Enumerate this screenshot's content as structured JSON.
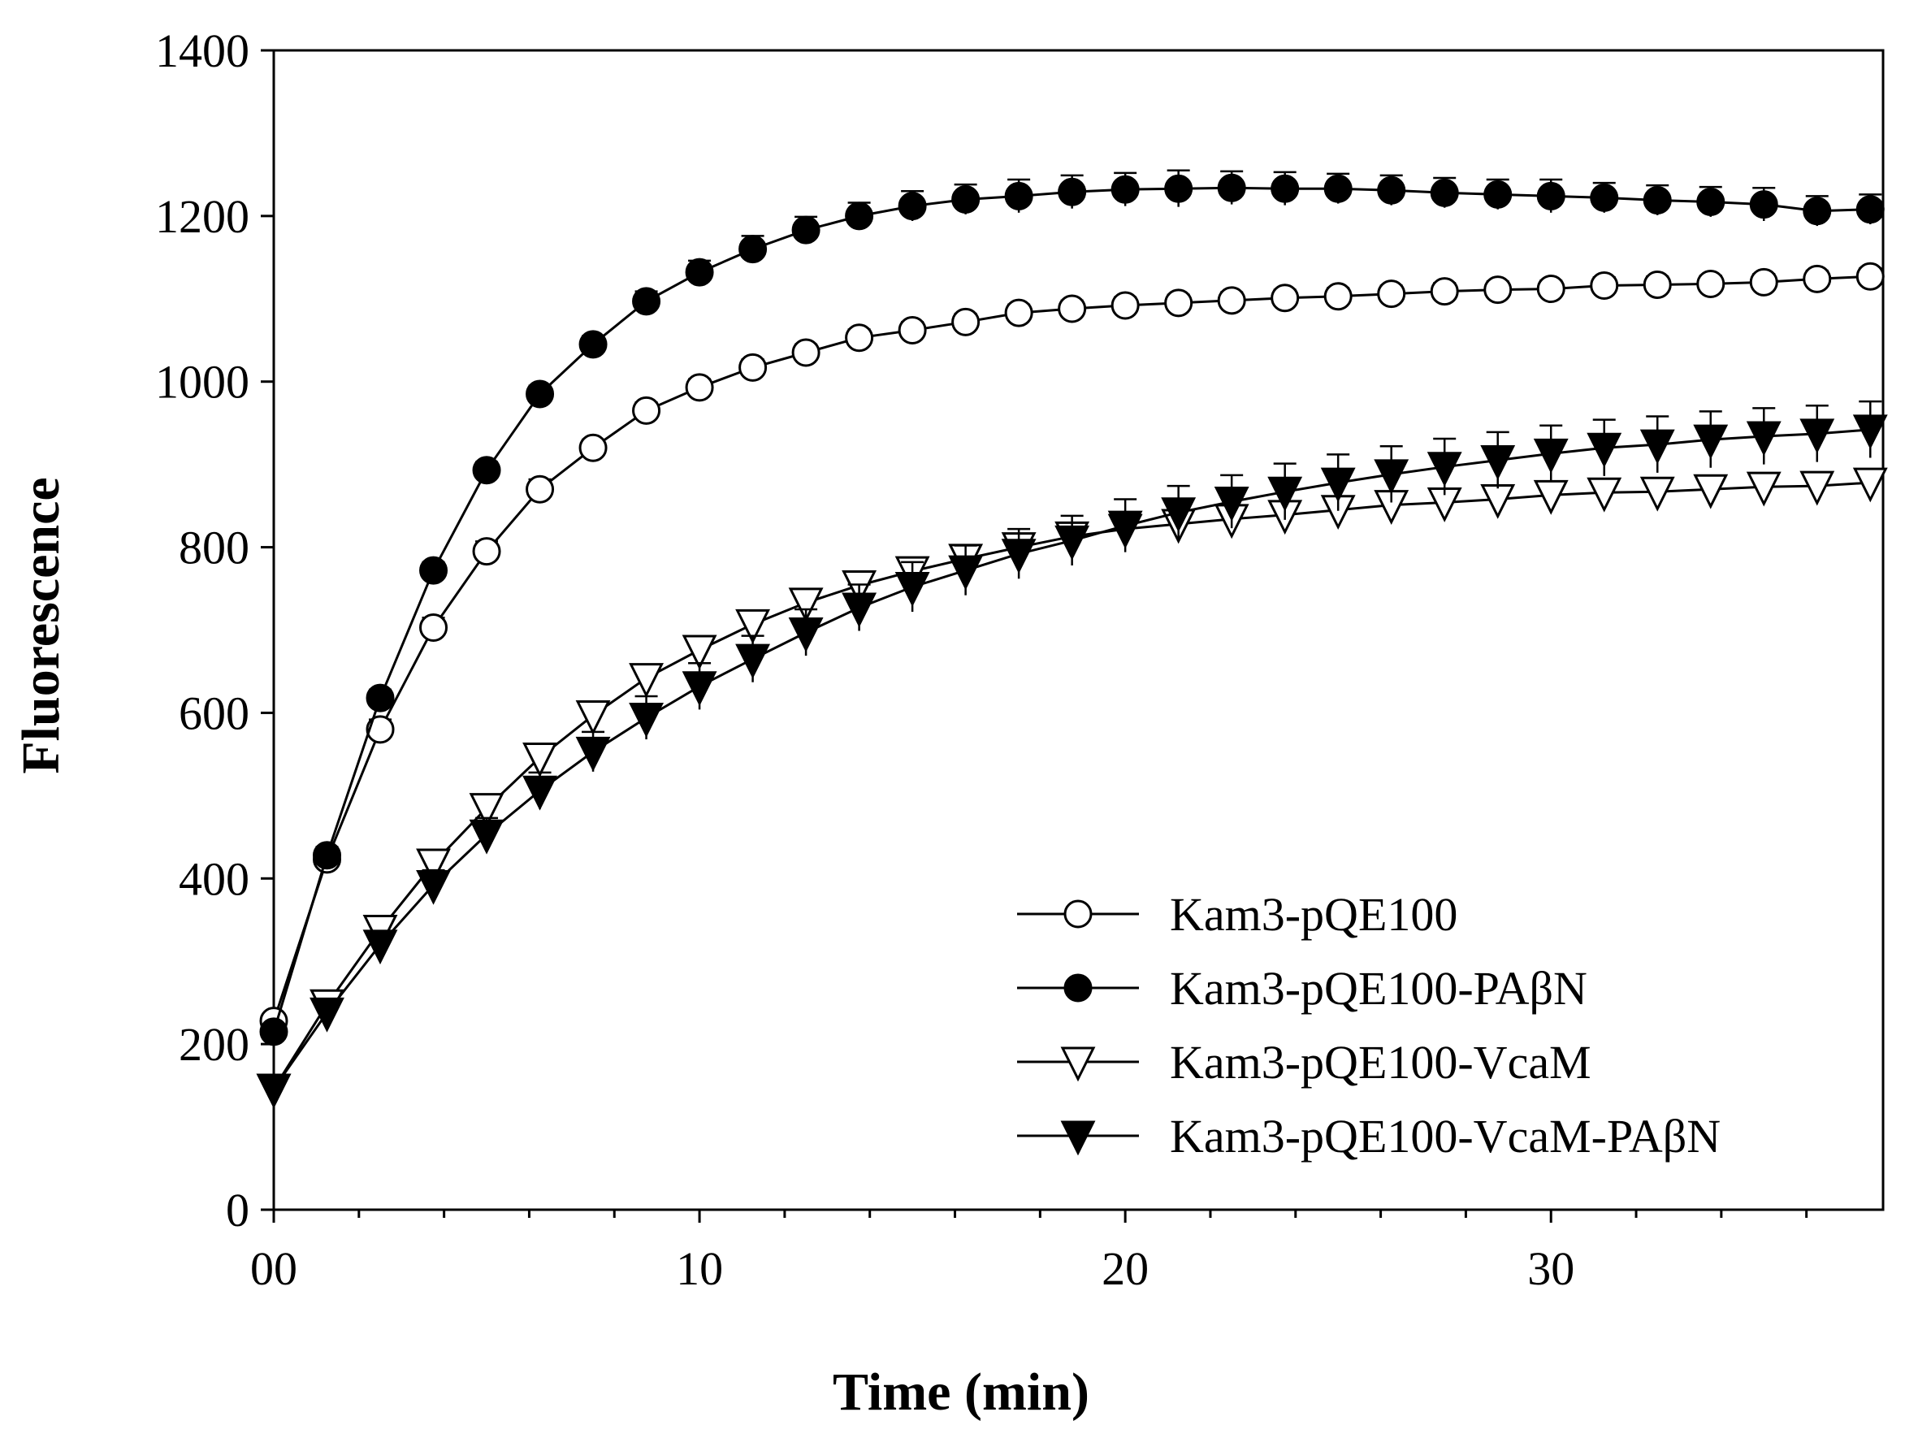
{
  "chart_data": {
    "type": "line",
    "title": "",
    "xlabel": "Time (min)",
    "ylabel": "Fluorescence",
    "xlim": [
      0,
      37.8
    ],
    "ylim": [
      0,
      1400
    ],
    "xticks": [
      0,
      10,
      20,
      30
    ],
    "xtick_labels": [
      "00",
      "10",
      "20",
      "30"
    ],
    "xminor_step": 2,
    "yticks": [
      0,
      200,
      400,
      600,
      800,
      1000,
      1200,
      1400
    ],
    "ytick_labels": [
      "0",
      "200",
      "400",
      "600",
      "800",
      "1000",
      "1200",
      "1400"
    ],
    "x": [
      0,
      1.25,
      2.5,
      3.75,
      5,
      6.25,
      7.5,
      8.75,
      10,
      11.25,
      12.5,
      13.75,
      15,
      16.25,
      17.5,
      18.75,
      20,
      21.25,
      22.5,
      23.75,
      25,
      26.25,
      27.5,
      28.75,
      30,
      31.25,
      32.5,
      33.75,
      35,
      36.25,
      37.5
    ],
    "legend_position": "bottom-right",
    "series": [
      {
        "name": "Kam3-pQE100",
        "marker": "circle-open",
        "values": [
          228,
          423,
          580,
          703,
          795,
          870,
          920,
          965,
          993,
          1017,
          1035,
          1053,
          1062,
          1072,
          1083,
          1088,
          1092,
          1095,
          1098,
          1101,
          1103,
          1106,
          1109,
          1111,
          1112,
          1116,
          1117,
          1118,
          1120,
          1124,
          1127
        ],
        "errors": [
          8,
          10,
          12,
          12,
          12,
          12,
          10,
          10,
          10,
          10,
          10,
          10,
          10,
          10,
          10,
          10,
          10,
          10,
          10,
          10,
          10,
          10,
          10,
          10,
          10,
          10,
          10,
          10,
          10,
          10,
          10
        ]
      },
      {
        "name": "Kam3-pQE100-PAβN",
        "marker": "circle-filled",
        "values": [
          215,
          428,
          618,
          772,
          893,
          985,
          1045,
          1097,
          1132,
          1160,
          1183,
          1200,
          1212,
          1220,
          1224,
          1229,
          1232,
          1233,
          1234,
          1233,
          1233,
          1231,
          1228,
          1226,
          1224,
          1222,
          1219,
          1217,
          1214,
          1206,
          1208
        ],
        "errors": [
          8,
          10,
          10,
          10,
          10,
          10,
          10,
          12,
          14,
          16,
          16,
          16,
          18,
          18,
          20,
          20,
          20,
          22,
          20,
          20,
          18,
          18,
          18,
          18,
          20,
          18,
          18,
          18,
          20,
          18,
          18
        ]
      },
      {
        "name": "Kam3-pQE100-VcaM",
        "marker": "triangle-down-open",
        "values": [
          146,
          248,
          338,
          418,
          485,
          546,
          597,
          642,
          676,
          707,
          733,
          754,
          771,
          786,
          800,
          813,
          822,
          828,
          834,
          839,
          845,
          851,
          854,
          858,
          863,
          866,
          867,
          870,
          873,
          874,
          878
        ],
        "errors": [
          10,
          10,
          12,
          14,
          14,
          14,
          14,
          14,
          14,
          14,
          14,
          14,
          14,
          14,
          14,
          14,
          14,
          14,
          14,
          14,
          14,
          14,
          14,
          14,
          14,
          14,
          14,
          14,
          14,
          14,
          14
        ]
      },
      {
        "name": "Kam3-pQE100-VcaM-PAβN",
        "marker": "triangle-down-filled",
        "values": [
          146,
          238,
          320,
          392,
          453,
          506,
          553,
          594,
          632,
          665,
          697,
          727,
          752,
          772,
          792,
          808,
          826,
          842,
          855,
          867,
          878,
          888,
          897,
          905,
          913,
          920,
          924,
          930,
          934,
          937,
          942
        ],
        "errors": [
          10,
          14,
          16,
          18,
          20,
          22,
          24,
          26,
          28,
          28,
          28,
          28,
          30,
          30,
          30,
          30,
          32,
          32,
          32,
          34,
          34,
          34,
          34,
          34,
          34,
          34,
          34,
          34,
          34,
          34,
          34
        ]
      }
    ]
  }
}
